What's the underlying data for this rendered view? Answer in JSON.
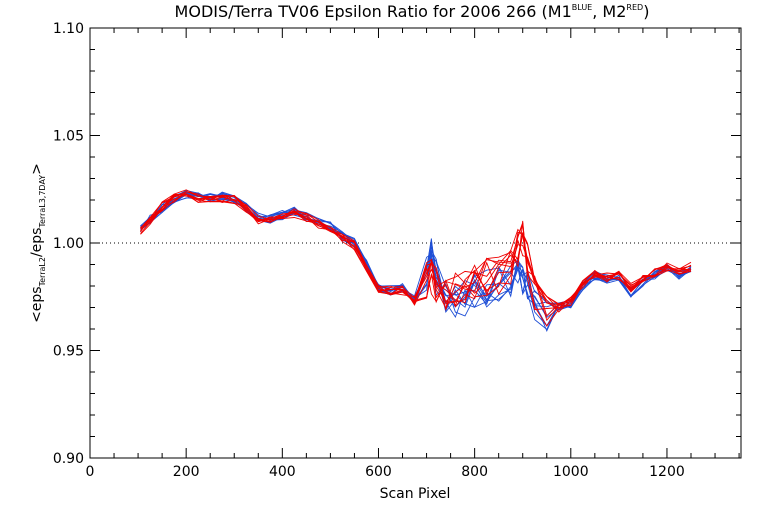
{
  "chart_data": {
    "type": "line",
    "title": {
      "prefix": "MODIS/Terra TV06 Epsilon Ratio for 2006 266 (M1",
      "sup1": "BLUE",
      "mid": ", M2",
      "sup2": "RED",
      "suffix": ")"
    },
    "xlabel": "Scan Pixel",
    "ylabel": {
      "part1": "<eps",
      "sub1": "TerraL2",
      "part2": "/eps",
      "sub2": "TerraL3,7DAY",
      "part3": ">"
    },
    "xlim": [
      0,
      1354
    ],
    "ylim": [
      0.9,
      1.1
    ],
    "x_ticks": [
      0,
      200,
      400,
      600,
      800,
      1000,
      1200
    ],
    "x_tick_labels": [
      "0",
      "200",
      "400",
      "600",
      "800",
      "1000",
      "1200"
    ],
    "y_ticks": [
      0.9,
      0.95,
      1.0,
      1.05,
      1.1
    ],
    "y_tick_labels": [
      "0.90",
      "0.95",
      "1.00",
      "1.05",
      "1.10"
    ],
    "reference_line": {
      "y": 1.0,
      "style": "dotted"
    },
    "grid": false,
    "legend": "none",
    "colors": {
      "M1": "#1f4fd6",
      "M2": "#ee0000"
    },
    "x": [
      105,
      125,
      150,
      175,
      200,
      225,
      250,
      275,
      300,
      325,
      350,
      375,
      400,
      425,
      450,
      475,
      500,
      525,
      550,
      575,
      600,
      625,
      650,
      675,
      700,
      710,
      720,
      740,
      760,
      780,
      800,
      825,
      850,
      875,
      890,
      900,
      910,
      925,
      950,
      975,
      1000,
      1025,
      1050,
      1075,
      1100,
      1125,
      1150,
      1175,
      1200,
      1225,
      1250
    ],
    "series": [
      {
        "detector": "M1",
        "values": [
          1.007,
          1.011,
          1.016,
          1.02,
          1.023,
          1.022,
          1.021,
          1.022,
          1.021,
          1.017,
          1.012,
          1.011,
          1.013,
          1.015,
          1.012,
          1.01,
          1.008,
          1.003,
          1.0,
          0.99,
          0.979,
          0.978,
          0.979,
          0.974,
          0.985,
          0.995,
          0.984,
          0.973,
          0.974,
          0.975,
          0.977,
          0.979,
          0.98,
          0.982,
          0.99,
          0.985,
          0.978,
          0.972,
          0.968,
          0.97,
          0.972,
          0.98,
          0.985,
          0.983,
          0.984,
          0.977,
          0.982,
          0.985,
          0.988,
          0.985,
          0.987
        ]
      },
      {
        "detector": "M2",
        "values": [
          1.006,
          1.01,
          1.017,
          1.021,
          1.023,
          1.021,
          1.021,
          1.021,
          1.02,
          1.016,
          1.011,
          1.011,
          1.013,
          1.014,
          1.012,
          1.009,
          1.007,
          1.002,
          0.999,
          0.989,
          0.979,
          0.978,
          0.978,
          0.973,
          0.982,
          0.985,
          0.981,
          0.975,
          0.978,
          0.98,
          0.982,
          0.984,
          0.985,
          0.988,
          0.998,
          1.002,
          0.992,
          0.978,
          0.97,
          0.97,
          0.973,
          0.981,
          0.986,
          0.984,
          0.985,
          0.979,
          0.983,
          0.986,
          0.989,
          0.987,
          0.989
        ]
      }
    ]
  }
}
